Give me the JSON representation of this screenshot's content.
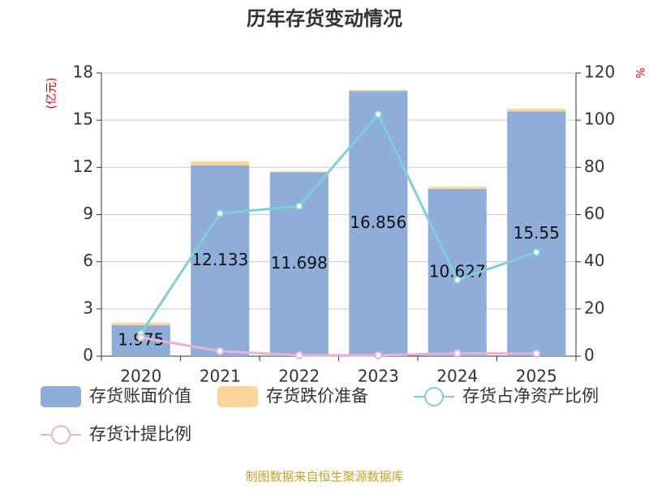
{
  "chart_data": {
    "type": "bar",
    "title": "历年存货变动情况",
    "y_label": "(亿元)",
    "y2_label": "%",
    "source": "制图数据来自恒生聚源数据库",
    "categories": [
      "2020",
      "2021",
      "2022",
      "2023",
      "2024",
      "2025"
    ],
    "ylim": [
      0,
      18
    ],
    "yticks": [
      0,
      3,
      6,
      9,
      12,
      15,
      18
    ],
    "y2lim": [
      0,
      120
    ],
    "y2ticks": [
      0,
      20,
      40,
      60,
      80,
      100,
      120
    ],
    "grid": true,
    "series": [
      {
        "name": "存货账面价值",
        "type": "bar",
        "color": "#8eadd9",
        "values": [
          1.975,
          12.133,
          11.698,
          16.856,
          10.627,
          15.55
        ],
        "show_labels": true
      },
      {
        "name": "存货跌价准备",
        "type": "bar",
        "color": "#fcd59a",
        "values": [
          0.15,
          0.25,
          0.05,
          0.07,
          0.15,
          0.18
        ]
      },
      {
        "name": "存货占净资产比例",
        "type": "line",
        "axis": "y2",
        "color": "#7fd0d6",
        "values": [
          9.6,
          60.5,
          63.6,
          102.5,
          32.3,
          44.0
        ]
      },
      {
        "name": "存货计提比例",
        "type": "line",
        "axis": "y2",
        "color": "#e6b3d8",
        "values": [
          7.9,
          2.1,
          0.4,
          0.4,
          1.2,
          1.1
        ]
      }
    ]
  }
}
